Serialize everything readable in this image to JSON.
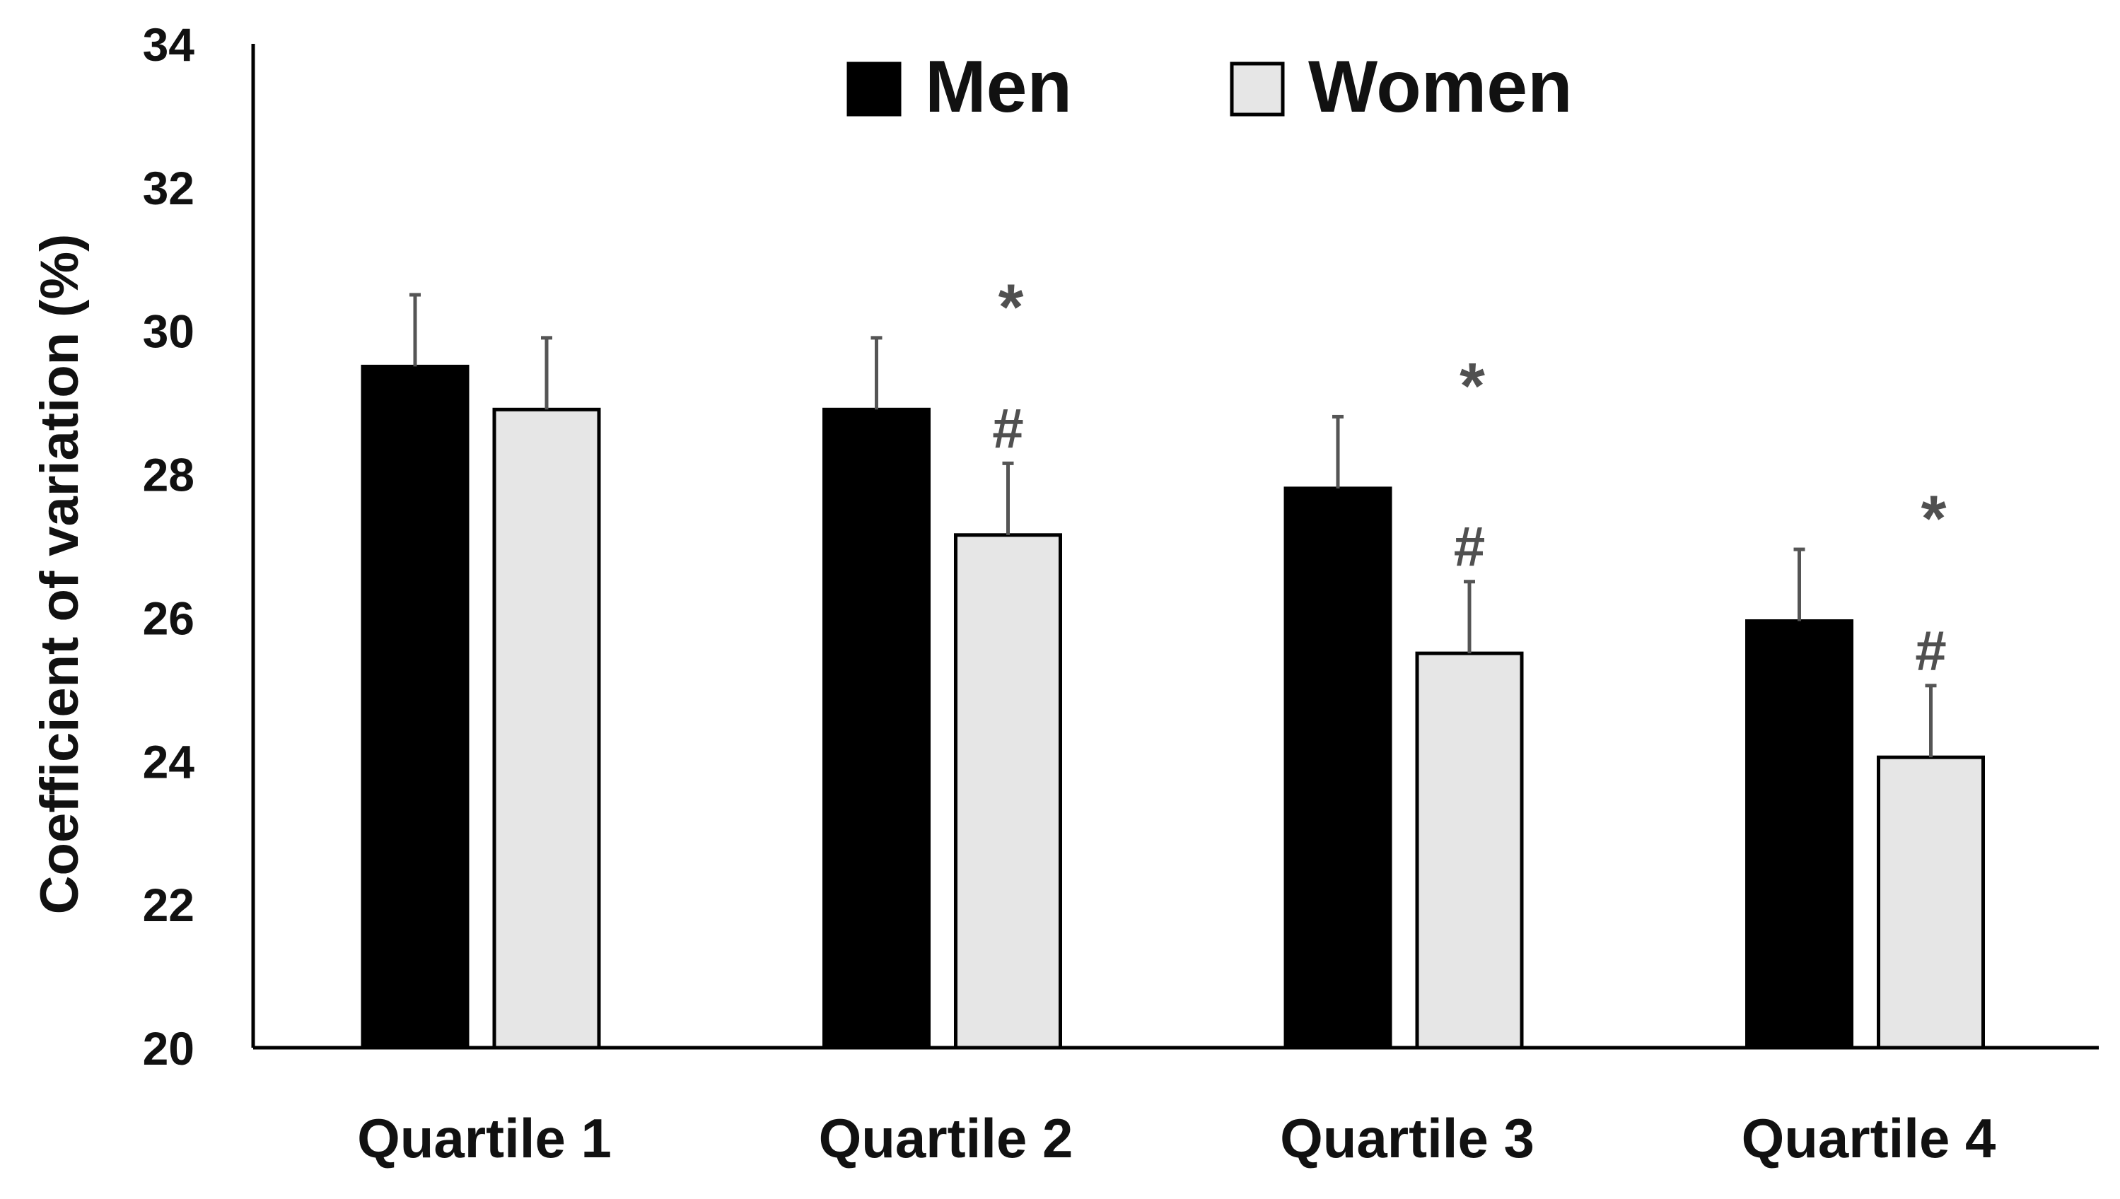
{
  "chart_data": {
    "type": "bar",
    "title": "",
    "xlabel": "",
    "ylabel": "Coefficient of variation (%)",
    "ylim": [
      20,
      34
    ],
    "yticks": [
      20,
      22,
      24,
      26,
      28,
      30,
      32,
      34
    ],
    "categories": [
      "Quartile 1",
      "Quartile 2",
      "Quartile 3",
      "Quartile 4"
    ],
    "series": [
      {
        "name": "Men",
        "color": "#000000",
        "values": [
          29.5,
          28.9,
          27.8,
          25.95
        ],
        "error": [
          1.0,
          1.0,
          1.0,
          1.0
        ],
        "annotations": [
          "",
          "*",
          "*",
          "*"
        ]
      },
      {
        "name": "Women",
        "color": "#e6e6e6",
        "values": [
          28.9,
          27.15,
          25.5,
          24.05
        ],
        "error": [
          1.0,
          1.0,
          1.0,
          1.0
        ],
        "annotations": [
          "",
          "#",
          "#",
          "#"
        ]
      }
    ],
    "legend_position": "top",
    "grid": false
  }
}
